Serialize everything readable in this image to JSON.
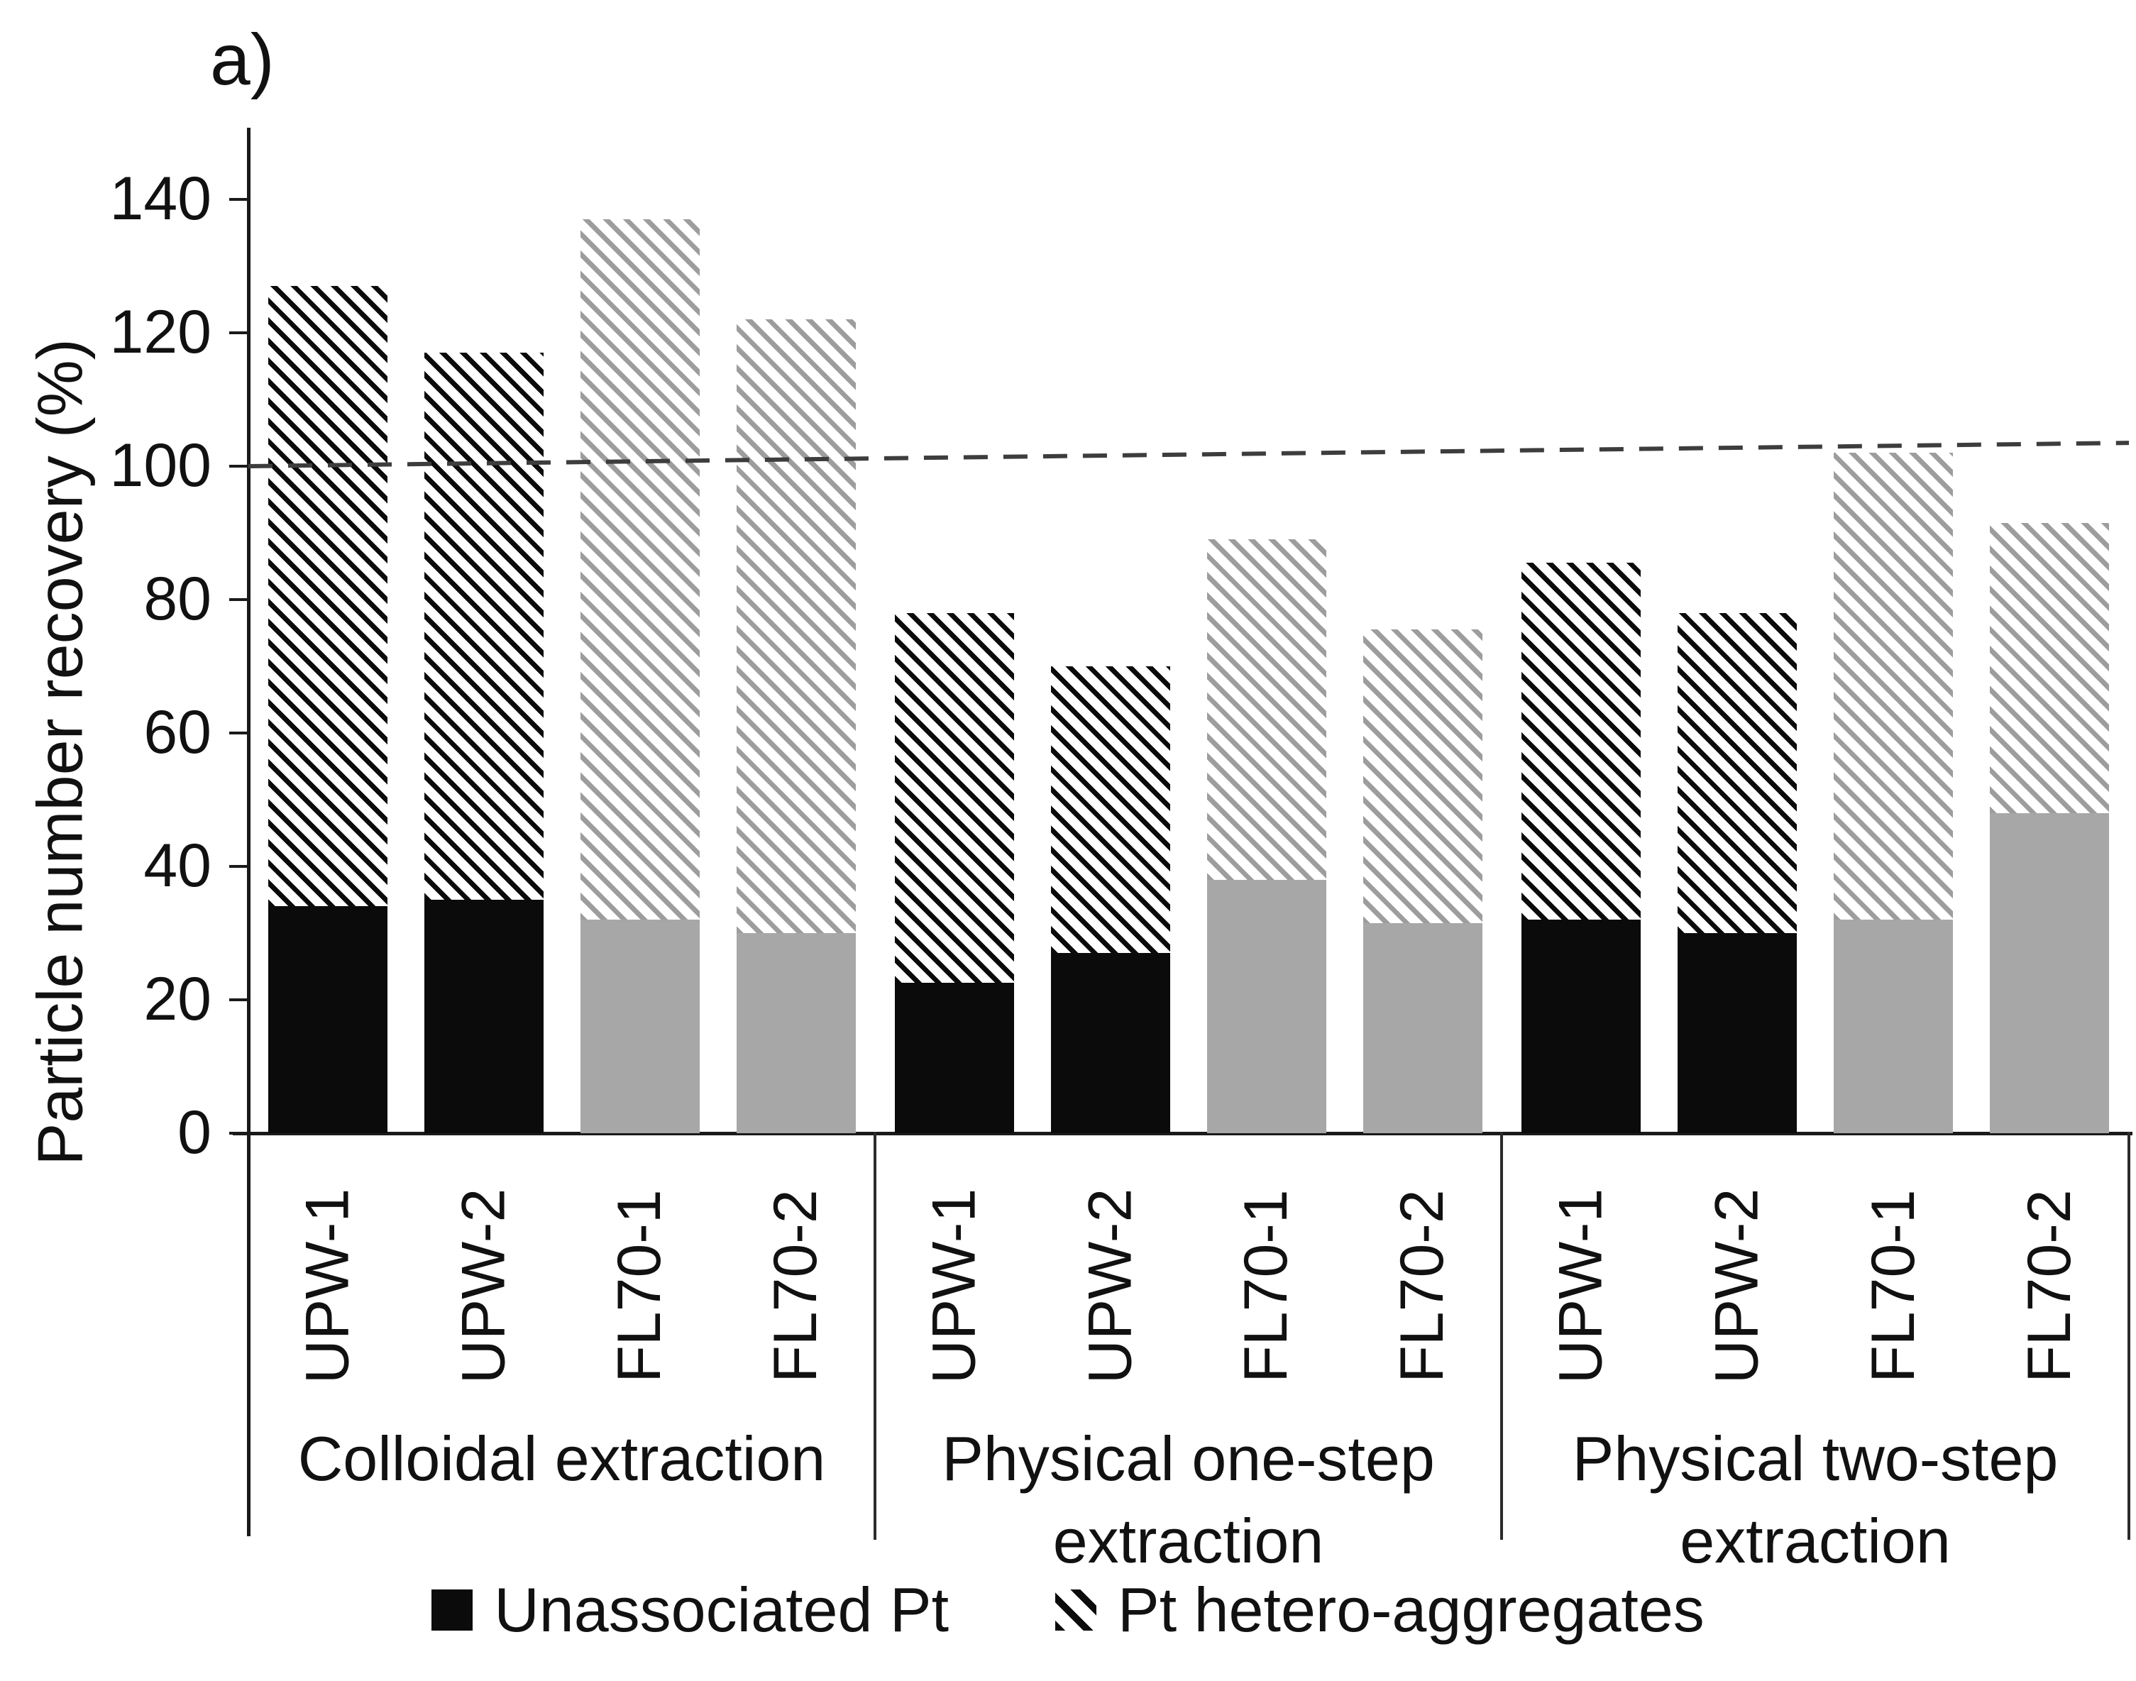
{
  "figure": {
    "label": "a)"
  },
  "y_axis": {
    "title": "Particle number recovery (%)",
    "ticks": [
      0,
      20,
      40,
      60,
      80,
      100,
      120,
      140
    ],
    "min": 0,
    "max": 140
  },
  "legend": {
    "items": [
      {
        "label": "Unassociated Pt",
        "swatch": "solid-black"
      },
      {
        "label": "Pt hetero-aggregates",
        "swatch": "hatch-black"
      }
    ]
  },
  "colors": {
    "black": "#0b0b0b",
    "gray_fill": "#a7a7a7",
    "gray_hatch": "#9d9d9d",
    "dashed_line": "#3d3d3d",
    "axis": "#1a1a1a"
  },
  "chart_data": {
    "type": "bar",
    "stacked": true,
    "title": "",
    "xlabel": "",
    "ylabel": "Particle number recovery (%)",
    "ylim": [
      0,
      140
    ],
    "yticks": [
      0,
      20,
      40,
      60,
      80,
      100,
      120,
      140
    ],
    "grid": false,
    "legend_position": "bottom",
    "series_names": [
      "Unassociated Pt",
      "Pt hetero-aggregates"
    ],
    "reference_line": {
      "style": "dashed",
      "start_value": 100,
      "end_value": 103.5
    },
    "groups": [
      {
        "label": "Colloidal extraction",
        "bars": [
          {
            "label": "UPW-1",
            "variant": "black",
            "unassociated": 34,
            "hetero_aggregates": 93,
            "total": 127
          },
          {
            "label": "UPW-2",
            "variant": "black",
            "unassociated": 35,
            "hetero_aggregates": 82,
            "total": 117
          },
          {
            "label": "FL70-1",
            "variant": "gray",
            "unassociated": 32,
            "hetero_aggregates": 105,
            "total": 137
          },
          {
            "label": "FL70-2",
            "variant": "gray",
            "unassociated": 30,
            "hetero_aggregates": 92,
            "total": 122
          }
        ]
      },
      {
        "label": "Physical one-step extraction",
        "bars": [
          {
            "label": "UPW-1",
            "variant": "black",
            "unassociated": 22.5,
            "hetero_aggregates": 55.5,
            "total": 78
          },
          {
            "label": "UPW-2",
            "variant": "black",
            "unassociated": 27,
            "hetero_aggregates": 43,
            "total": 70
          },
          {
            "label": "FL70-1",
            "variant": "gray",
            "unassociated": 38,
            "hetero_aggregates": 51,
            "total": 89
          },
          {
            "label": "FL70-2",
            "variant": "gray",
            "unassociated": 31.5,
            "hetero_aggregates": 44,
            "total": 75.5
          }
        ]
      },
      {
        "label": "Physical two-step extraction",
        "bars": [
          {
            "label": "UPW-1",
            "variant": "black",
            "unassociated": 32,
            "hetero_aggregates": 53.5,
            "total": 85.5
          },
          {
            "label": "UPW-2",
            "variant": "black",
            "unassociated": 30,
            "hetero_aggregates": 48,
            "total": 78
          },
          {
            "label": "FL70-1",
            "variant": "gray",
            "unassociated": 32,
            "hetero_aggregates": 70,
            "total": 102
          },
          {
            "label": "FL70-2",
            "variant": "gray",
            "unassociated": 48,
            "hetero_aggregates": 43.5,
            "total": 91.5
          }
        ]
      }
    ]
  }
}
